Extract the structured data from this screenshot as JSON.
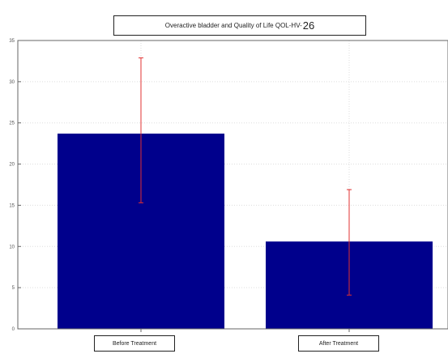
{
  "chart_data": {
    "type": "bar",
    "title_main": "Overactive bladder and Quality of Life QOL-HV-",
    "title_suffix": "26",
    "categories": [
      "Before Treatment",
      "After Treatment"
    ],
    "values": [
      23.7,
      10.6
    ],
    "errors_upper": [
      32.9,
      16.9
    ],
    "errors_lower": [
      15.3,
      4.1
    ],
    "ylim": [
      0,
      35
    ],
    "yticks": [
      0,
      5,
      10,
      15,
      20,
      25,
      30,
      35
    ],
    "grid": true,
    "bar_color": "#00008c",
    "error_color": "#e03030"
  }
}
